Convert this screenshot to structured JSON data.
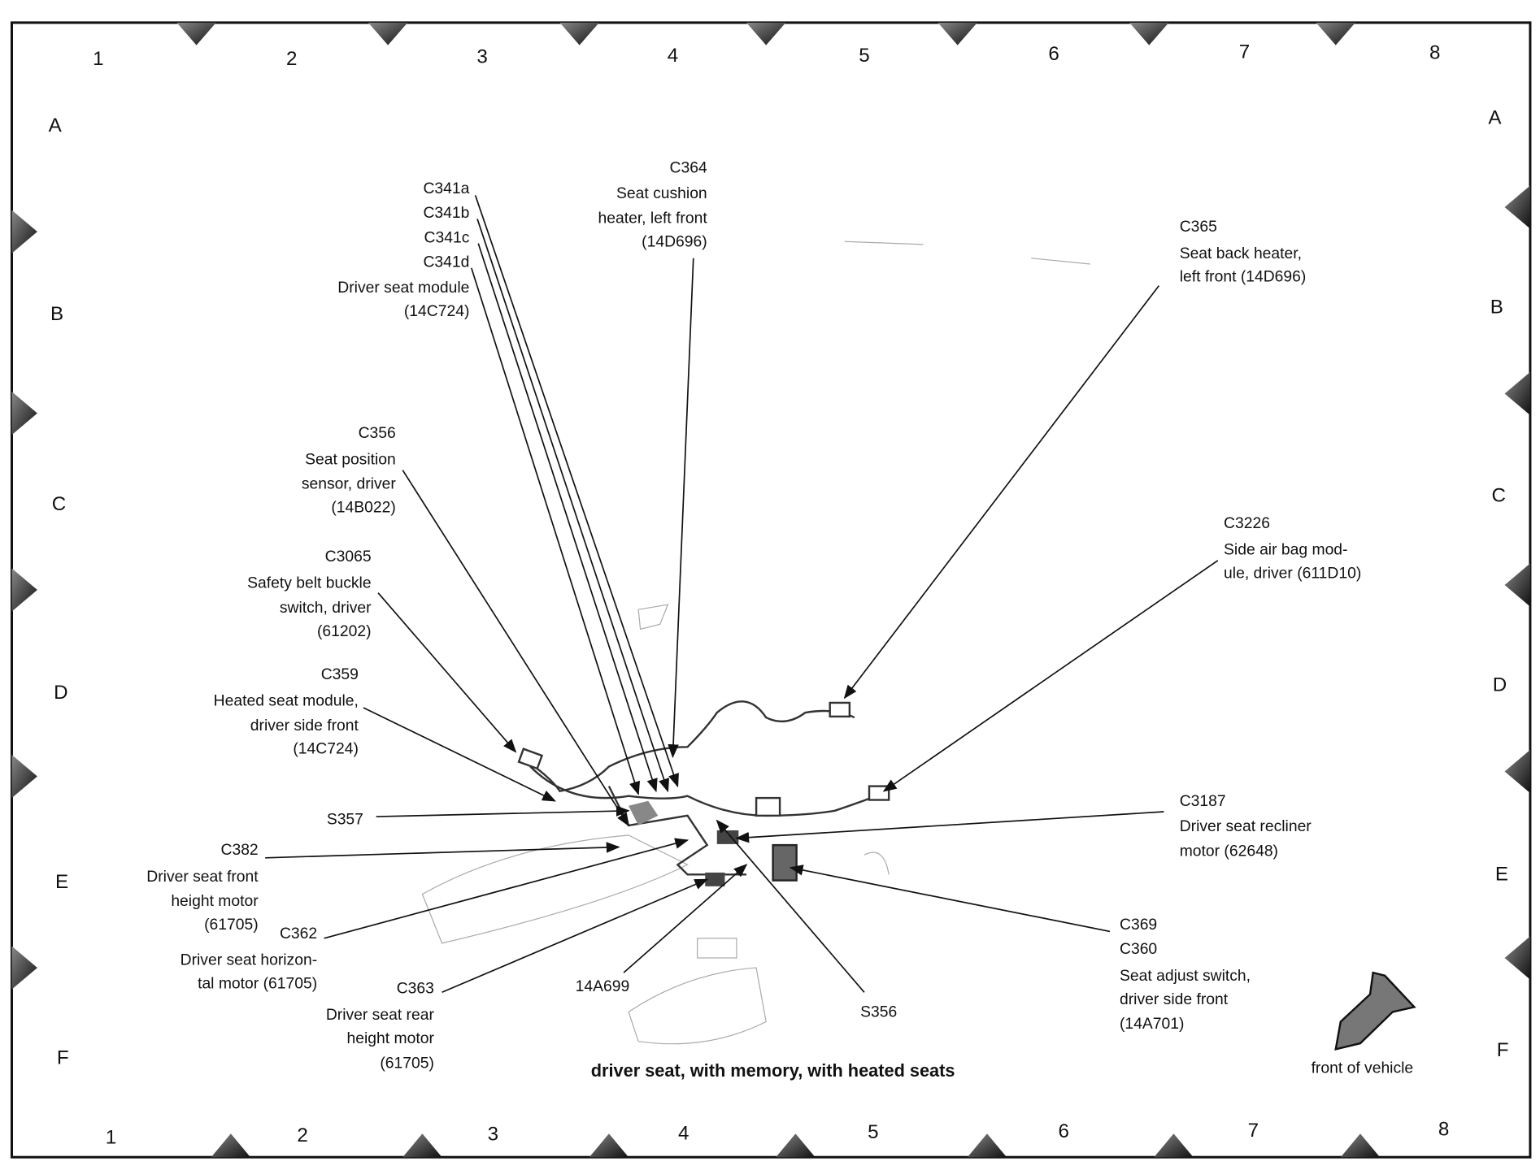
{
  "grid": {
    "columns": [
      "1",
      "2",
      "3",
      "4",
      "5",
      "6",
      "7",
      "8"
    ],
    "rows": [
      "A",
      "B",
      "C",
      "D",
      "E",
      "F"
    ]
  },
  "caption": "driver seat, with memory, with heated seats",
  "orientation": {
    "label": "front of vehicle",
    "icon": "arrow-down-left-icon"
  },
  "callouts": {
    "c341": [
      "C341a",
      "C341b",
      "C341c",
      "C341d",
      "Driver seat module",
      "(14C724)"
    ],
    "c364": [
      "C364",
      "Seat cushion",
      "heater, left front",
      "(14D696)"
    ],
    "c365": [
      "C365",
      "Seat back heater,",
      "left front (14D696)"
    ],
    "c356": [
      "C356",
      "Seat position",
      "sensor, driver",
      "(14B022)"
    ],
    "c3065": [
      "C3065",
      "Safety belt buckle",
      "switch, driver",
      "(61202)"
    ],
    "c359": [
      "C359",
      "Heated seat module,",
      "driver side front",
      "(14C724)"
    ],
    "s357": [
      "S357"
    ],
    "c382": [
      "C382",
      "Driver seat front",
      "height motor",
      "(61705)"
    ],
    "c362": [
      "C362",
      "Driver seat horizon-",
      "tal motor (61705)"
    ],
    "c363": [
      "C363",
      "Driver seat rear",
      "height motor",
      "(61705)"
    ],
    "a14a699": [
      "14A699"
    ],
    "s356": [
      "S356"
    ],
    "c369": [
      "C369",
      "C360",
      "Seat adjust switch,",
      "driver side front",
      "(14A701)"
    ],
    "c3187": [
      "C3187",
      "Driver seat recliner",
      "motor (62648)"
    ],
    "c3226": [
      "C3226",
      "Side air bag mod-",
      "ule, driver (611D10)"
    ]
  }
}
